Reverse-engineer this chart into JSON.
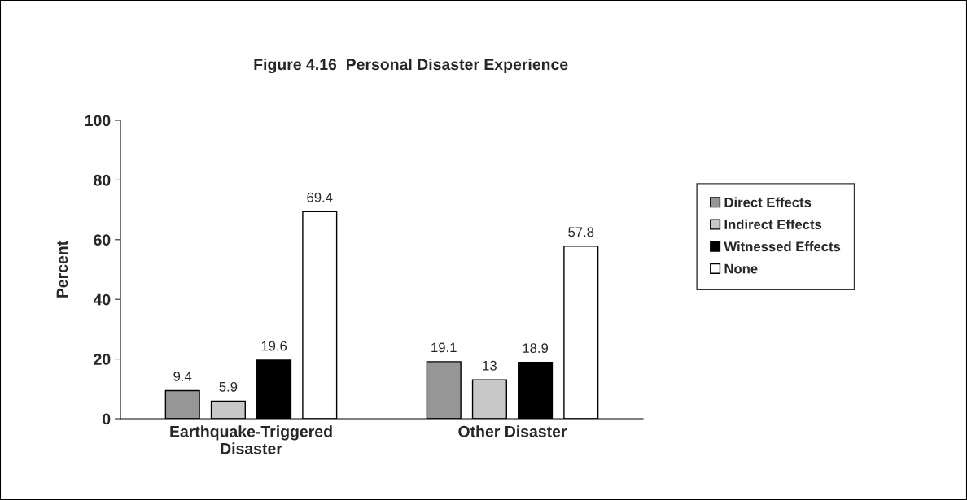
{
  "chart_data": {
    "type": "bar",
    "title": "Figure 4.16  Personal Disaster Experience",
    "ylabel": "Percent",
    "categories": [
      "Earthquake-Triggered\nDisaster",
      "Other Disaster"
    ],
    "series": [
      {
        "name": "Direct Effects",
        "color": "#969696",
        "values": [
          9.4,
          19.1
        ]
      },
      {
        "name": "Indirect Effects",
        "color": "#c8c8c8",
        "values": [
          5.9,
          13
        ]
      },
      {
        "name": "Witnessed Effects",
        "color": "#000000",
        "values": [
          19.6,
          18.9
        ]
      },
      {
        "name": "None",
        "color": "#ffffff",
        "values": [
          69.4,
          57.8
        ]
      }
    ],
    "ylim": [
      0,
      100
    ],
    "yticks": [
      0,
      20,
      40,
      60,
      80,
      100
    ],
    "grid": false,
    "legend": "right",
    "data_labels": true
  }
}
